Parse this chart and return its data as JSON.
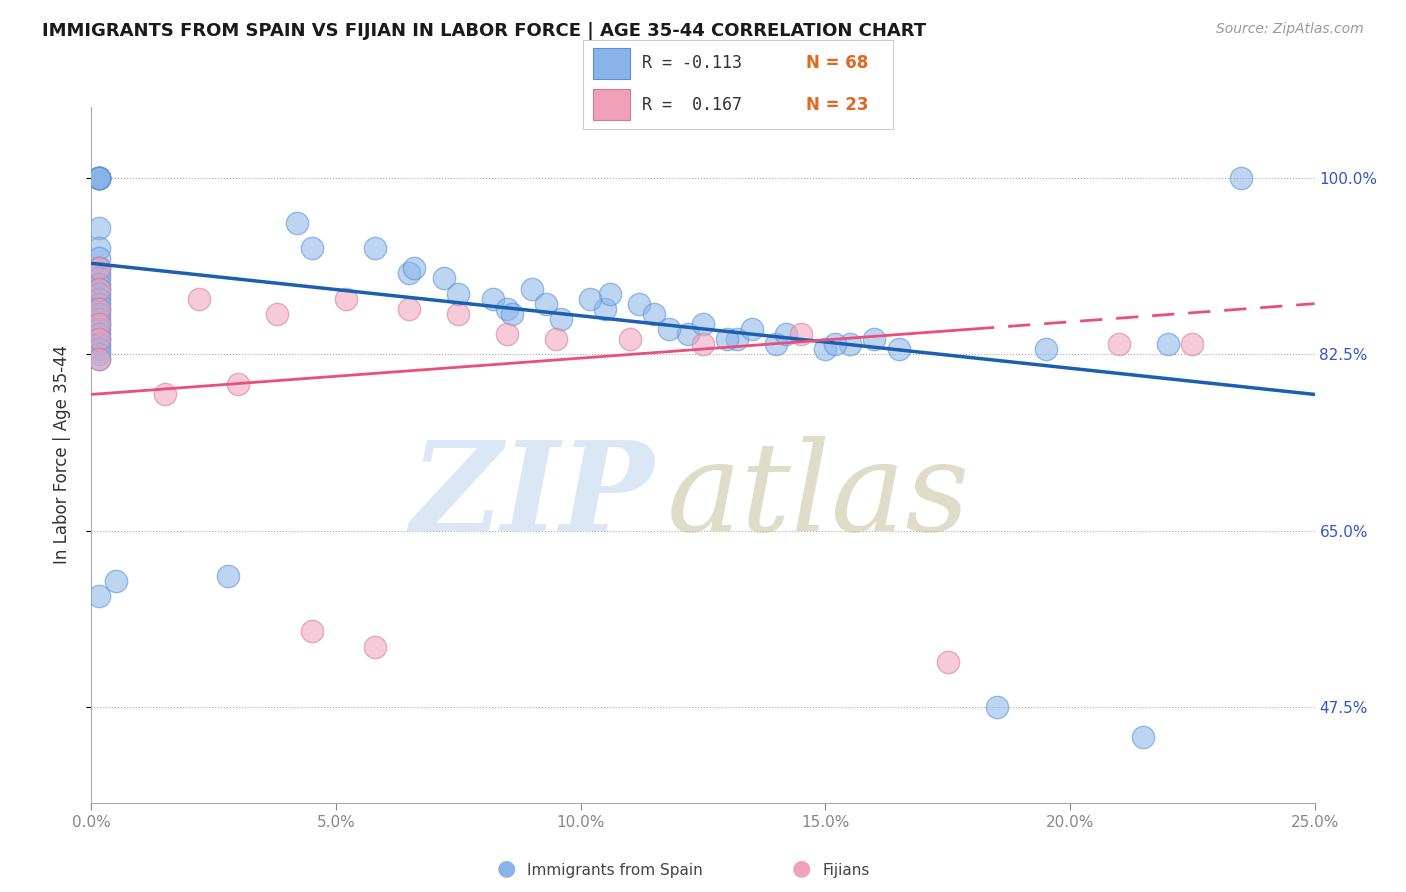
{
  "title": "IMMIGRANTS FROM SPAIN VS FIJIAN IN LABOR FORCE | AGE 35-44 CORRELATION CHART",
  "source": "Source: ZipAtlas.com",
  "ylabel": "In Labor Force | Age 35-44",
  "yticks": [
    47.5,
    65.0,
    82.5,
    100.0
  ],
  "ytick_labels": [
    "47.5%",
    "65.0%",
    "82.5%",
    "100.0%"
  ],
  "xticks": [
    0.0,
    5.0,
    10.0,
    15.0,
    20.0,
    25.0
  ],
  "xtick_labels": [
    "0.0%",
    "5.0%",
    "10.0%",
    "15.0%",
    "20.0%",
    "25.0%"
  ],
  "xlim": [
    0.0,
    25.0
  ],
  "ylim": [
    38.0,
    107.0
  ],
  "blue_color": "#8ab4e8",
  "pink_color": "#f0a0b8",
  "blue_line_color": "#1a5fb0",
  "pink_line_color": "#e8507a",
  "blue_r": -0.113,
  "blue_n": 68,
  "pink_r": 0.167,
  "pink_n": 23,
  "spain_x": [
    0.15,
    0.15,
    0.15,
    0.15,
    0.15,
    0.15,
    0.15,
    0.15,
    0.15,
    0.15,
    0.15,
    0.15,
    0.15,
    0.15,
    0.15,
    0.15,
    0.15,
    0.15,
    0.15,
    0.15,
    0.15,
    0.15,
    0.15,
    0.15,
    0.15,
    0.15,
    0.15,
    0.15,
    0.15,
    0.15,
    0.5,
    2.8,
    4.2,
    4.5,
    5.8,
    6.5,
    6.6,
    7.2,
    7.5,
    8.2,
    8.5,
    8.6,
    9.0,
    9.3,
    9.6,
    10.5,
    10.6,
    11.2,
    11.5,
    12.2,
    12.5,
    13.2,
    13.5,
    14.0,
    14.2,
    15.0,
    15.5,
    16.0,
    18.5,
    21.5,
    23.5,
    10.2,
    11.8,
    13.0,
    15.2,
    16.5,
    19.5,
    22.0
  ],
  "spain_y": [
    100.0,
    100.0,
    100.0,
    100.0,
    100.0,
    100.0,
    100.0,
    95.0,
    93.0,
    92.0,
    91.0,
    90.5,
    90.0,
    89.5,
    89.0,
    88.5,
    88.0,
    87.5,
    87.0,
    86.5,
    86.0,
    85.5,
    85.0,
    84.5,
    84.0,
    83.5,
    83.0,
    82.5,
    82.0,
    58.5,
    60.0,
    60.5,
    95.5,
    93.0,
    93.0,
    90.5,
    91.0,
    90.0,
    88.5,
    88.0,
    87.0,
    86.5,
    89.0,
    87.5,
    86.0,
    87.0,
    88.5,
    87.5,
    86.5,
    84.5,
    85.5,
    84.0,
    85.0,
    83.5,
    84.5,
    83.0,
    83.5,
    84.0,
    47.5,
    44.5,
    100.0,
    88.0,
    85.0,
    84.0,
    83.5,
    83.0,
    83.0,
    83.5
  ],
  "fijian_x": [
    0.15,
    0.15,
    0.15,
    0.15,
    0.15,
    0.15,
    1.5,
    2.2,
    3.0,
    3.8,
    4.5,
    5.2,
    5.8,
    6.5,
    7.5,
    8.5,
    9.5,
    11.0,
    12.5,
    14.5,
    17.5,
    21.0,
    22.5
  ],
  "fijian_y": [
    91.0,
    89.0,
    87.0,
    85.5,
    84.0,
    82.0,
    78.5,
    88.0,
    79.5,
    86.5,
    55.0,
    88.0,
    53.5,
    87.0,
    86.5,
    84.5,
    84.0,
    84.0,
    83.5,
    84.5,
    52.0,
    83.5,
    83.5
  ],
  "watermark_zip": "ZIP",
  "watermark_atlas": "atlas",
  "legend_blue_r": "R = -0.113",
  "legend_blue_n": "N = 68",
  "legend_pink_r": "R =  0.167",
  "legend_pink_n": "N = 23",
  "bottom_legend_blue": "Immigrants from Spain",
  "bottom_legend_pink": "Fijians",
  "blue_intercept": 91.5,
  "blue_slope": -0.52,
  "pink_intercept": 78.5,
  "pink_slope": 0.36
}
